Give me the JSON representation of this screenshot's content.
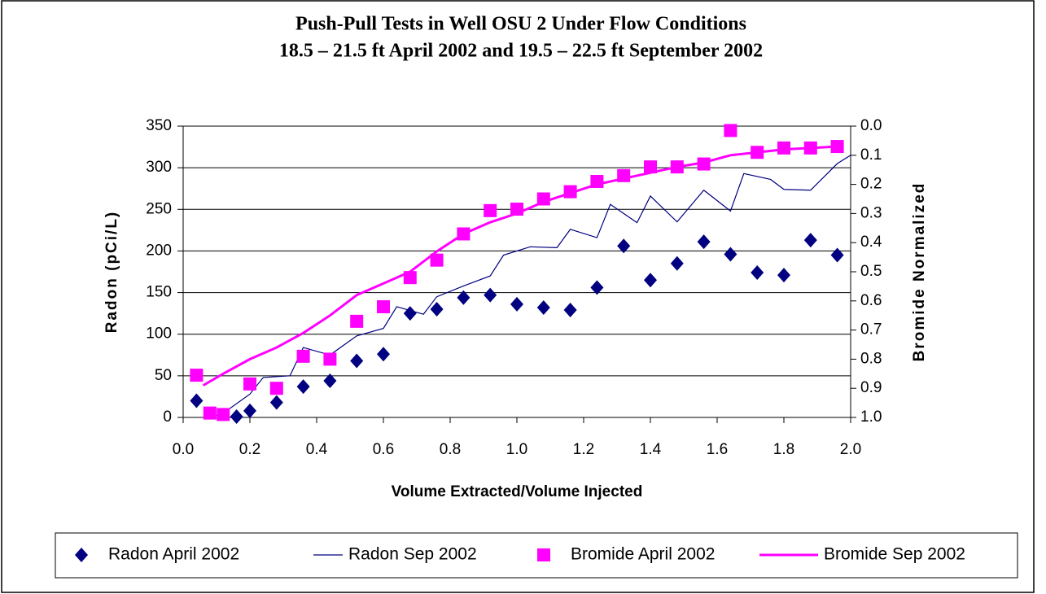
{
  "chart_data": {
    "type": "scatter",
    "title": [
      "Push-Pull Tests in Well OSU 2 Under Flow Conditions",
      "18.5 – 21.5 ft April 2002 and 19.5 – 22.5 ft September 2002"
    ],
    "xlabel": "Volume Extracted/Volume Injected",
    "ylabel": "Radon (pCi/L)",
    "y2label": "Bromide Normalized",
    "xlim": [
      0,
      2
    ],
    "xticks": [
      {
        "value": 0,
        "label": "0.0"
      },
      0.2,
      0.4,
      0.6,
      0.8,
      {
        "value": 1,
        "label": "1.0"
      },
      1.2,
      1.4,
      1.6,
      1.8,
      {
        "value": 2,
        "label": "2.0"
      }
    ],
    "ylim": [
      0,
      350
    ],
    "yticks": [
      0,
      50,
      100,
      150,
      200,
      250,
      300,
      350
    ],
    "y2lim": [
      1,
      0
    ],
    "y2ticks": [
      {
        "value": 0,
        "label": "0.0"
      },
      0.1,
      0.2,
      0.3,
      0.4,
      0.5,
      0.6,
      0.7,
      0.8,
      0.9,
      {
        "value": 1,
        "label": "1.0"
      }
    ],
    "grid": true,
    "legend": "bottom",
    "series": [
      {
        "name": "Radon April 2002",
        "color": "#000080",
        "style": "marker",
        "marker": "diamond",
        "axis": "y",
        "x": [
          0.04,
          0.16,
          0.2,
          0.28,
          0.36,
          0.44,
          0.52,
          0.6,
          0.68,
          0.76,
          0.84,
          0.92,
          1.0,
          1.08,
          1.16,
          1.24,
          1.32,
          1.4,
          1.48,
          1.56,
          1.64,
          1.72,
          1.8,
          1.88,
          1.96
        ],
        "values": [
          20,
          1,
          8,
          18,
          37,
          44,
          68,
          76,
          125,
          130,
          144,
          147,
          136,
          132,
          129,
          156,
          206,
          165,
          185,
          211,
          196,
          174,
          171,
          213,
          195
        ]
      },
      {
        "name": "Radon Sep 2002",
        "color": "#000080",
        "style": "line",
        "axis": "y",
        "x": [
          0.08,
          0.12,
          0.2,
          0.24,
          0.32,
          0.36,
          0.44,
          0.52,
          0.6,
          0.64,
          0.72,
          0.76,
          0.84,
          0.92,
          0.96,
          1.04,
          1.12,
          1.16,
          1.24,
          1.28,
          1.36,
          1.4,
          1.48,
          1.56,
          1.64,
          1.68,
          1.76,
          1.8,
          1.88,
          1.96,
          2.0
        ],
        "values": [
          0,
          5,
          28,
          48,
          50,
          84,
          75,
          98,
          107,
          133,
          124,
          145,
          158,
          170,
          195,
          205,
          204,
          226,
          216,
          256,
          234,
          266,
          235,
          273,
          248,
          293,
          286,
          274,
          273,
          305,
          315
        ]
      },
      {
        "name": "Bromide April 2002",
        "color": "#ff00ff",
        "style": "marker",
        "marker": "square",
        "axis": "y2",
        "x": [
          0.04,
          0.08,
          0.12,
          0.2,
          0.28,
          0.36,
          0.44,
          0.52,
          0.6,
          0.68,
          0.76,
          0.84,
          0.92,
          1.0,
          1.08,
          1.16,
          1.24,
          1.32,
          1.4,
          1.48,
          1.56,
          1.64,
          1.72,
          1.8,
          1.88,
          1.96
        ],
        "values": [
          0.855,
          0.985,
          0.99,
          0.885,
          0.9,
          0.79,
          0.8,
          0.67,
          0.62,
          0.52,
          0.46,
          0.37,
          0.29,
          0.285,
          0.25,
          0.225,
          0.19,
          0.17,
          0.14,
          0.14,
          0.13,
          0.015,
          0.09,
          0.075,
          0.075,
          0.07
        ]
      },
      {
        "name": "Bromide Sep 2002",
        "color": "#ff00ff",
        "style": "line",
        "axis": "y2",
        "x": [
          0.06,
          0.12,
          0.2,
          0.28,
          0.36,
          0.44,
          0.52,
          0.6,
          0.68,
          0.76,
          0.84,
          0.92,
          1.0,
          1.08,
          1.16,
          1.24,
          1.32,
          1.4,
          1.48,
          1.56,
          1.64,
          1.72,
          1.8,
          1.88,
          1.96
        ],
        "values": [
          0.89,
          0.85,
          0.8,
          0.76,
          0.71,
          0.65,
          0.58,
          0.54,
          0.5,
          0.43,
          0.37,
          0.33,
          0.3,
          0.26,
          0.23,
          0.2,
          0.18,
          0.16,
          0.14,
          0.125,
          0.1,
          0.09,
          0.08,
          0.075,
          0.07
        ]
      }
    ]
  }
}
